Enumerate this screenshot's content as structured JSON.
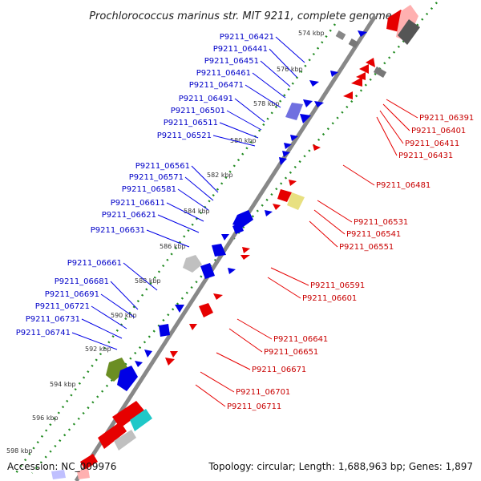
{
  "title": "Prochlorococcus marinus str. MIT 9211, complete genome",
  "footer": {
    "accession": "Accession: NC_009976",
    "summary": "Topology: circular; Length: 1,688,963 bp; Genes: 1,897"
  },
  "ticks": [
    "574 kbp",
    "576 kbp",
    "578 kbp",
    "580 kbp",
    "582 kbp",
    "584 kbp",
    "586 kbp",
    "588 kbp",
    "590 kbp",
    "592 kbp",
    "594 kbp",
    "596 kbp",
    "598 kbp"
  ],
  "forward_genes": [
    "P9211_06421",
    "P9211_06441",
    "P9211_06451",
    "P9211_06461",
    "P9211_06471",
    "P9211_06491",
    "P9211_06501",
    "P9211_06511",
    "P9211_06521",
    "P9211_06561",
    "P9211_06571",
    "P9211_06581",
    "P9211_06611",
    "P9211_06621",
    "P9211_06631",
    "P9211_06661",
    "P9211_06681",
    "P9211_06691",
    "P9211_06721",
    "P9211_06731",
    "P9211_06741"
  ],
  "reverse_genes": [
    "P9211_06391",
    "P9211_06401",
    "P9211_06411",
    "P9211_06431",
    "P9211_06481",
    "P9211_06531",
    "P9211_06541",
    "P9211_06551",
    "P9211_06591",
    "P9211_06601",
    "P9211_06641",
    "P9211_06651",
    "P9211_06671",
    "P9211_06701",
    "P9211_06711"
  ],
  "colors": {
    "forward": "#0000e6",
    "reverse": "#e60000",
    "backbone": "#777777",
    "forward_label": "#0000c8",
    "reverse_label": "#c80000",
    "tick_marks": "#228b22",
    "rna_gray": "#808080",
    "olive": "#6b8e23",
    "cyan": "#20c8c8",
    "yellow": "#e8e080",
    "purple": "#6a5acd"
  }
}
